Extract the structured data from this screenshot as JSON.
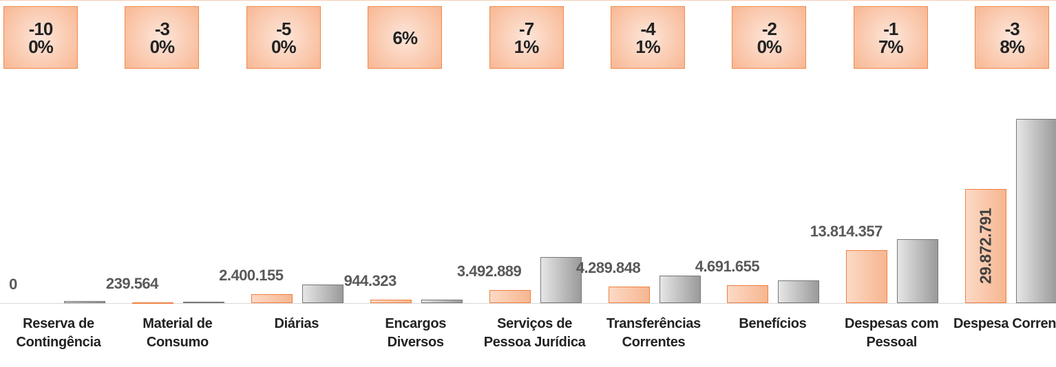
{
  "chart_data": {
    "type": "bar",
    "categories": [
      "Reserva de Contingência",
      "Material de Consumo",
      "Diárias",
      "Encargos Diversos",
      "Serviços de Pessoa Jurídica",
      "Transferências Correntes",
      "Benefícios",
      "Despesas com Pessoal",
      "Despesa Corrente"
    ],
    "series": [
      {
        "color": "#f4a070",
        "values": [
          0,
          239564,
          2400155,
          944323,
          3492889,
          4289848,
          4691655,
          13814357,
          29872791
        ],
        "value_labels": [
          "0",
          "239.564",
          "2.400.155",
          "944.323",
          "3.492.889",
          "4.289.848",
          "4.691.655",
          "13.814.357",
          "29.872.791"
        ]
      },
      {
        "color": "#a6a6a6",
        "values": [
          530000,
          342000,
          4800000,
          891000,
          12040000,
          7270000,
          5860000,
          16640000,
          48180000
        ]
      }
    ],
    "changes": {
      "values": [
        -100,
        -30,
        -50,
        6,
        -71,
        -41,
        -20,
        -17,
        -38
      ],
      "value_labels": [
        "-100%",
        "-30%",
        "-50%",
        "6%",
        "-71%",
        "-41%",
        "-20%",
        "-17%",
        "-38%"
      ]
    }
  }
}
